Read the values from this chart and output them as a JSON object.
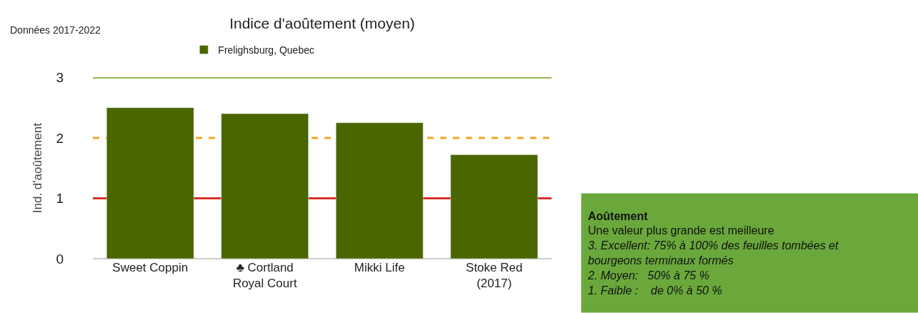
{
  "chart_data": {
    "type": "bar",
    "title": "Indice d'aoûtement (moyen)",
    "ylabel": "Ind. d'aoûtement",
    "categories": [
      "Sweet Coppin",
      "♣ Cortland\nRoyal Court",
      "Mikki Life",
      "Stoke Red\n(2017)"
    ],
    "series": [
      {
        "name": "Frelighsburg, Quebec",
        "color": "#4a6600",
        "values": [
          2.5,
          2.4,
          2.25,
          1.72
        ]
      }
    ],
    "ylim": [
      0,
      3
    ],
    "yticks": [
      0,
      1,
      2,
      3
    ],
    "grid": false,
    "legend": "top",
    "ref_lines": [
      {
        "axis": "y",
        "value": 3,
        "color": "#76a21e",
        "line_style": "solid"
      },
      {
        "axis": "y",
        "value": 2,
        "color": "#f5a623",
        "line_style": "dashed"
      },
      {
        "axis": "y",
        "value": 1,
        "color": "#d9302c",
        "line_style": "solid"
      }
    ],
    "annotations": [
      "Données 2017-2022",
      "Aoûtement",
      "Une valeur plus grande est meilleure",
      "3. Excellent: 75% à 100% des feuilles tombées et",
      "bourgeons terminaux formés",
      "2. Moyen:   50% à 75 %",
      "1. Faible :    de 0% à 50 %"
    ]
  }
}
